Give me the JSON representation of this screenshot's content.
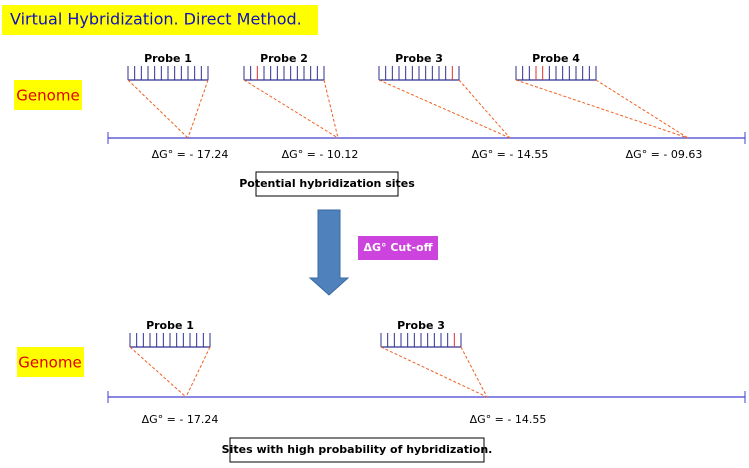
{
  "title": "Virtual Hybridization. Direct Method.",
  "top": {
    "genome_label": "Genome",
    "probes": [
      {
        "label": "Probe 1",
        "delta_g": "ΔG° = - 17.24"
      },
      {
        "label": "Probe 2",
        "delta_g": "ΔG° = - 10.12"
      },
      {
        "label": "Probe 3",
        "delta_g": "ΔG° = - 14.55"
      },
      {
        "label": "Probe 4",
        "delta_g": "ΔG° = - 09.63"
      }
    ],
    "sites_label": "Potential hybridization sites"
  },
  "cutoff_label": "ΔG° Cut-off",
  "bottom": {
    "genome_label": "Genome",
    "probes": [
      {
        "label": "Probe 1",
        "delta_g": "ΔG° = - 17.24"
      },
      {
        "label": "Probe 3",
        "delta_g": "ΔG° = - 14.55"
      }
    ],
    "sites_label": "Sites with high probability of hybridization."
  }
}
